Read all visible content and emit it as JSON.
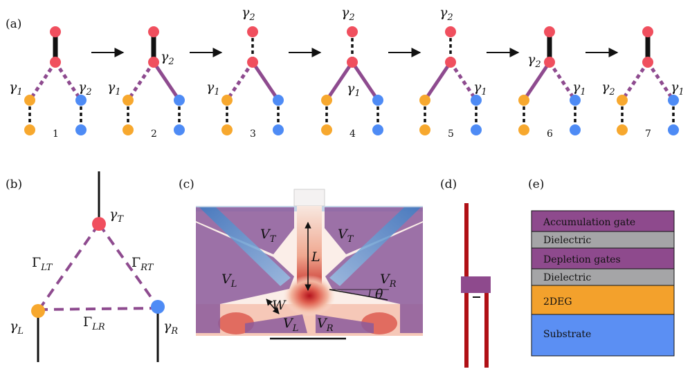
{
  "panel_labels": {
    "a": "(a)",
    "b": "(b)",
    "c": "(c)",
    "d": "(d)",
    "e": "(e)"
  },
  "colors": {
    "red": "#f04f5e",
    "orange": "#f7a82e",
    "blue": "#4e8bf5",
    "purple": "#8e4b8f",
    "black": "#111111",
    "accumulation": "#8e4a8d",
    "dielectric": "#a5a5a7",
    "depletion": "#8e4a8d",
    "twodeg": "#f3a12c",
    "substrate": "#5b8ff3",
    "wire": "#b01015"
  },
  "panel_a": {
    "steps": [
      {
        "num": "1",
        "labels": [
          {
            "g": "γ",
            "s": "1",
            "pos": "left"
          },
          {
            "g": "γ",
            "s": "2",
            "pos": "right"
          }
        ]
      },
      {
        "num": "2",
        "labels": [
          {
            "g": "γ",
            "s": "1",
            "pos": "left"
          },
          {
            "g": "γ",
            "s": "2",
            "pos": "junction-right"
          }
        ]
      },
      {
        "num": "3",
        "labels": [
          {
            "g": "γ",
            "s": "1",
            "pos": "left"
          },
          {
            "g": "γ",
            "s": "2",
            "pos": "top"
          }
        ]
      },
      {
        "num": "4",
        "labels": [
          {
            "g": "γ",
            "s": "1",
            "pos": "below-junction"
          },
          {
            "g": "γ",
            "s": "2",
            "pos": "top"
          }
        ]
      },
      {
        "num": "5",
        "labels": [
          {
            "g": "γ",
            "s": "1",
            "pos": "right"
          },
          {
            "g": "γ",
            "s": "2",
            "pos": "top"
          }
        ]
      },
      {
        "num": "6",
        "labels": [
          {
            "g": "γ",
            "s": "1",
            "pos": "right"
          },
          {
            "g": "γ",
            "s": "2",
            "pos": "junction-left"
          }
        ]
      },
      {
        "num": "7",
        "labels": [
          {
            "g": "γ",
            "s": "2",
            "pos": "left"
          },
          {
            "g": "γ",
            "s": "1",
            "pos": "right"
          }
        ]
      }
    ]
  },
  "panel_b": {
    "gamma_T": {
      "g": "γ",
      "s": "T"
    },
    "gamma_L": {
      "g": "γ",
      "s": "L"
    },
    "gamma_R": {
      "g": "γ",
      "s": "R"
    },
    "Gamma_LT": {
      "g": "Γ",
      "s": "LT"
    },
    "Gamma_RT": {
      "g": "Γ",
      "s": "RT"
    },
    "Gamma_LR": {
      "g": "Γ",
      "s": "LR"
    }
  },
  "panel_c": {
    "gates": [
      {
        "g": "V",
        "s": "T"
      },
      {
        "g": "V",
        "s": "T"
      },
      {
        "g": "V",
        "s": "L"
      },
      {
        "g": "V",
        "s": "R"
      },
      {
        "g": "V",
        "s": "L"
      },
      {
        "g": "V",
        "s": "R"
      }
    ],
    "length_label": "L",
    "width_label": "W",
    "angle_label": "θ"
  },
  "panel_e": {
    "layers": [
      "Accumulation gate",
      "Dielectric",
      "Depletion gates",
      "Dielectric",
      "2DEG",
      "Substrate"
    ]
  }
}
